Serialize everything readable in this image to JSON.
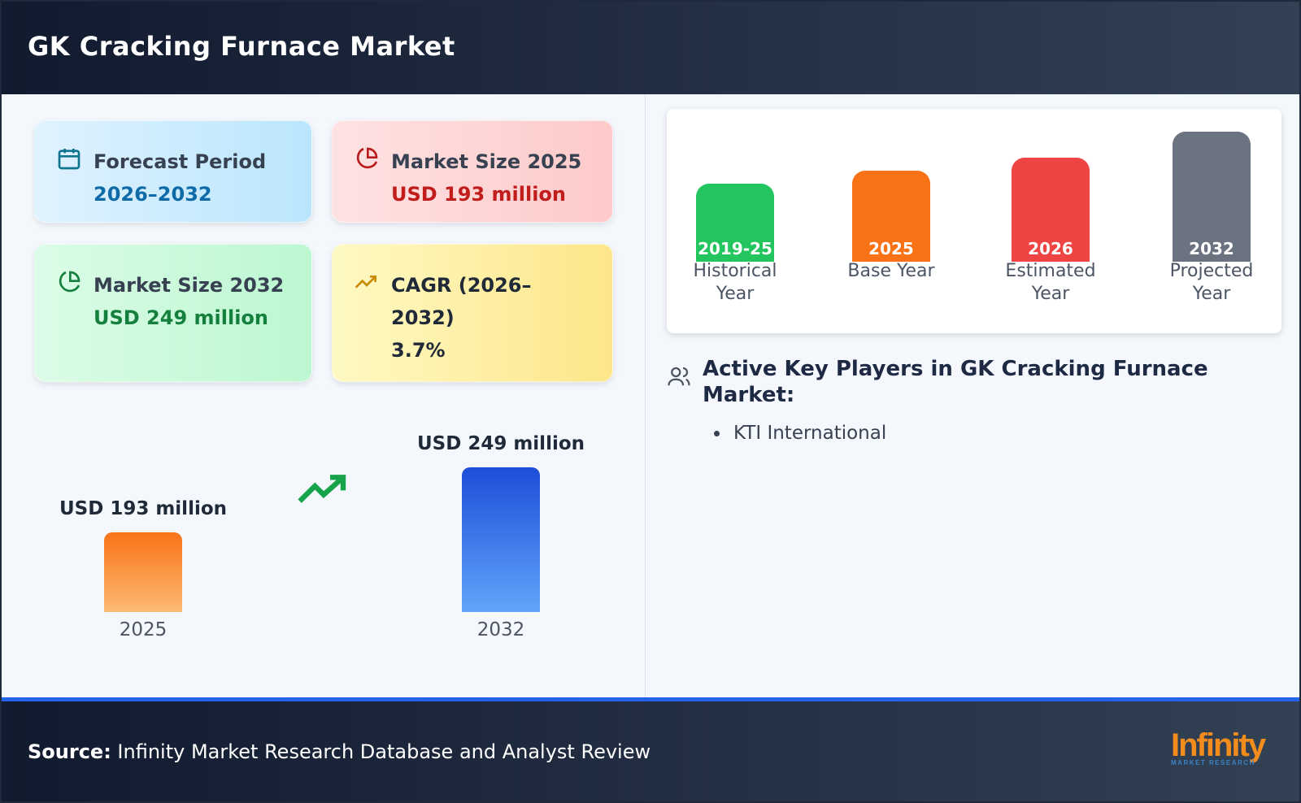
{
  "header": {
    "title": "GK Cracking Furnace Market"
  },
  "cards": [
    {
      "title": "Forecast Period",
      "value": "2026–2032",
      "icon": "calendar-icon",
      "color": "#0e6ba8"
    },
    {
      "title": "Market Size 2025",
      "value": "USD 193 million",
      "icon": "pie-chart-icon",
      "color": "#c21d1d"
    },
    {
      "title": "Market Size 2032",
      "value": "USD 249 million",
      "icon": "pie-chart-icon",
      "color": "#15803d"
    },
    {
      "title": "CAGR (2026–2032)",
      "value": "3.7%",
      "icon": "trending-up-icon",
      "color": "#1f2937"
    }
  ],
  "chart_data": {
    "type": "bar",
    "categories": [
      "2025",
      "2032"
    ],
    "values": [
      193,
      249
    ],
    "labels": [
      "USD 193 million",
      "USD 249 million"
    ],
    "unit": "USD million"
  },
  "timeline": [
    {
      "year": "2019-25",
      "label": "Historical Year",
      "color": "#22c55e"
    },
    {
      "year": "2025",
      "label": "Base Year",
      "color": "#f97316"
    },
    {
      "year": "2026",
      "label": "Estimated Year",
      "color": "#ef4444"
    },
    {
      "year": "2032",
      "label": "Projected Year",
      "color": "#6b7280"
    }
  ],
  "players": {
    "heading": "Active Key Players in GK Cracking Furnace Market:",
    "items": [
      "KTI International"
    ]
  },
  "footer": {
    "source_label": "Source:",
    "source_text": " Infinity Market Research Database and Analyst Review",
    "logo": "Infinity",
    "logo_sub": "MARKET RESEARCH"
  }
}
